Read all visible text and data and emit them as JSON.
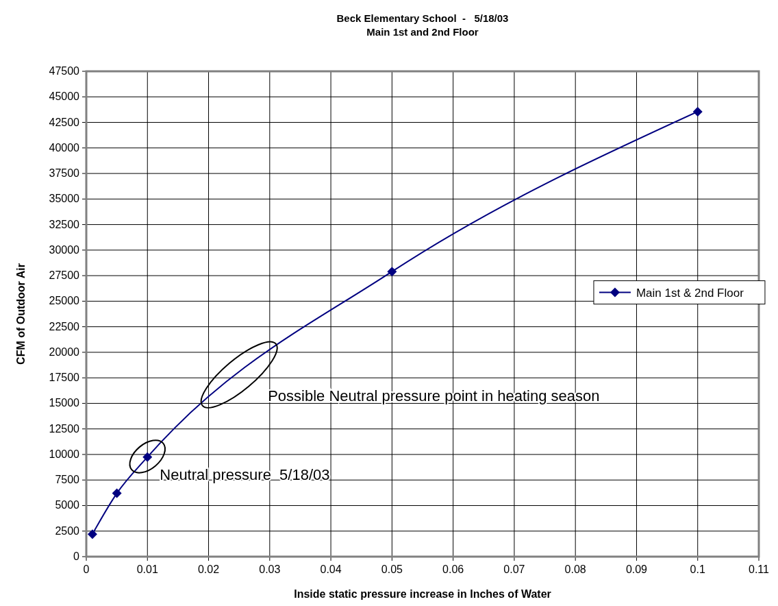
{
  "chart_data": {
    "type": "line",
    "title": "Beck Elementary School  -   5/18/03\nMain 1st and 2nd Floor",
    "xlabel": "Inside static pressure increase in Inches of Water",
    "ylabel": "CFM of Outdoor Air",
    "x": [
      0.001,
      0.005,
      0.01,
      0.05,
      0.1
    ],
    "series": [
      {
        "name": "Main 1st & 2nd Floor",
        "color": "#000080",
        "values": [
          2200,
          6200,
          9750,
          27900,
          43550
        ]
      }
    ],
    "xlim": [
      0,
      0.11
    ],
    "xticks": [
      0,
      0.01,
      0.02,
      0.03,
      0.04,
      0.05,
      0.06,
      0.07,
      0.08,
      0.09,
      0.1,
      0.11
    ],
    "ylim": [
      0,
      47500
    ],
    "yticks": [
      0,
      2500,
      5000,
      7500,
      10000,
      12500,
      15000,
      17500,
      20000,
      22500,
      25000,
      27500,
      30000,
      32500,
      35000,
      37500,
      40000,
      42500,
      45000,
      47500
    ],
    "grid": true,
    "legend": "right",
    "marker": "diamond",
    "line_style": "solid",
    "annotations": [
      {
        "text": "Neutral pressure  5/18/03",
        "x": 0.01,
        "y": 9800
      },
      {
        "text": "Possible Neutral pressure point in heating season",
        "x": 0.025,
        "y": 17800
      }
    ]
  }
}
